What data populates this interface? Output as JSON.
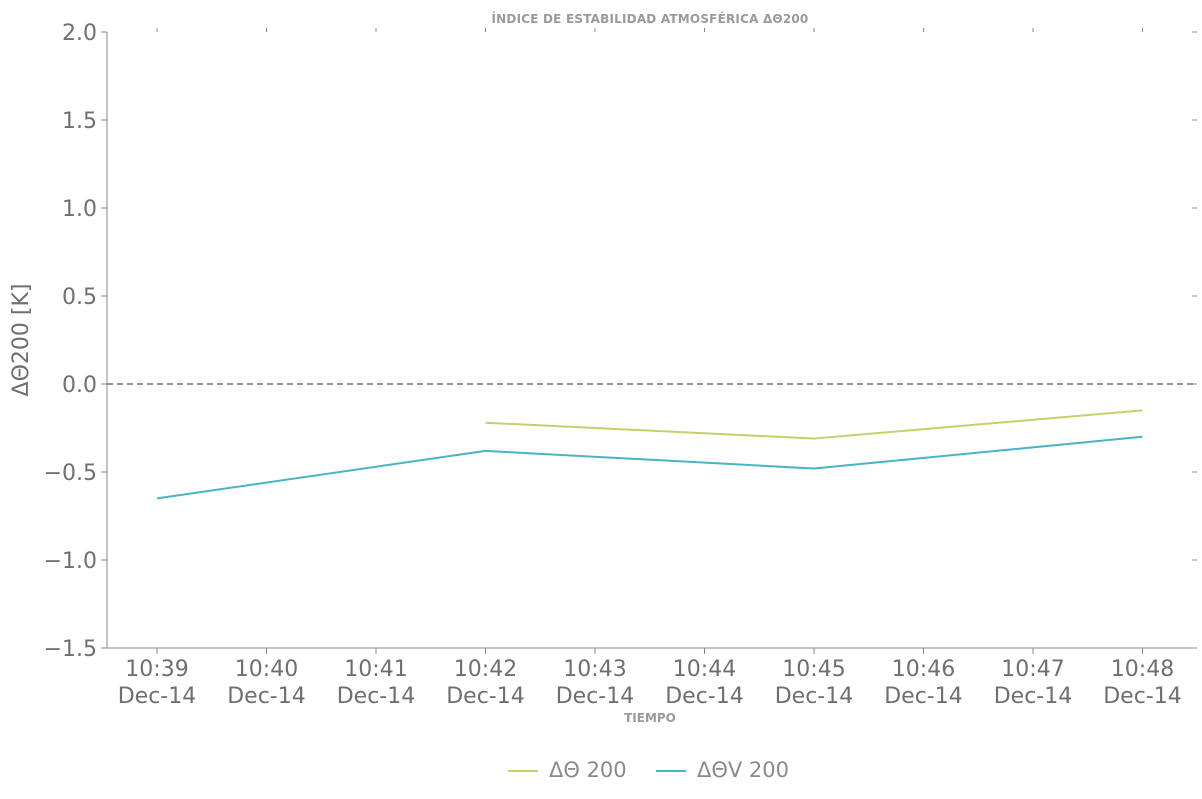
{
  "chart_data": {
    "type": "line",
    "title": "ÍNDICE DE ESTABILIDAD ATMOSFÉRICA ΔΘ200",
    "xlabel": "TIEMPO",
    "ylabel": "ΔΘ200 [K]",
    "ylim": [
      -1.5,
      2.0
    ],
    "yticks": [
      {
        "value": -1.5,
        "label": "−1.5"
      },
      {
        "value": -1.0,
        "label": "−1.0"
      },
      {
        "value": -0.5,
        "label": "−0.5"
      },
      {
        "value": 0.0,
        "label": "0.0"
      },
      {
        "value": 0.5,
        "label": "0.5"
      },
      {
        "value": 1.0,
        "label": "1.0"
      },
      {
        "value": 1.5,
        "label": "1.5"
      },
      {
        "value": 2.0,
        "label": "2.0"
      }
    ],
    "categories": [
      {
        "time": "10:39",
        "date": "Dec-14"
      },
      {
        "time": "10:40",
        "date": "Dec-14"
      },
      {
        "time": "10:41",
        "date": "Dec-14"
      },
      {
        "time": "10:42",
        "date": "Dec-14"
      },
      {
        "time": "10:43",
        "date": "Dec-14"
      },
      {
        "time": "10:44",
        "date": "Dec-14"
      },
      {
        "time": "10:45",
        "date": "Dec-14"
      },
      {
        "time": "10:46",
        "date": "Dec-14"
      },
      {
        "time": "10:47",
        "date": "Dec-14"
      },
      {
        "time": "10:48",
        "date": "Dec-14"
      }
    ],
    "reference_line": {
      "value": 0.0,
      "style": "dashed",
      "color": "#707070"
    },
    "series": [
      {
        "name": "ΔΘ 200",
        "color": "#c8cf6a",
        "points": [
          {
            "x": "10:42",
            "y": -0.22
          },
          {
            "x": "10:45",
            "y": -0.31
          },
          {
            "x": "10:48",
            "y": -0.15
          }
        ]
      },
      {
        "name": "ΔΘV 200",
        "color": "#4bb3c3",
        "points": [
          {
            "x": "10:39",
            "y": -0.65
          },
          {
            "x": "10:42",
            "y": -0.38
          },
          {
            "x": "10:45",
            "y": -0.48
          },
          {
            "x": "10:48",
            "y": -0.3
          }
        ]
      }
    ],
    "grid": false,
    "legend_position": "bottom-center"
  }
}
